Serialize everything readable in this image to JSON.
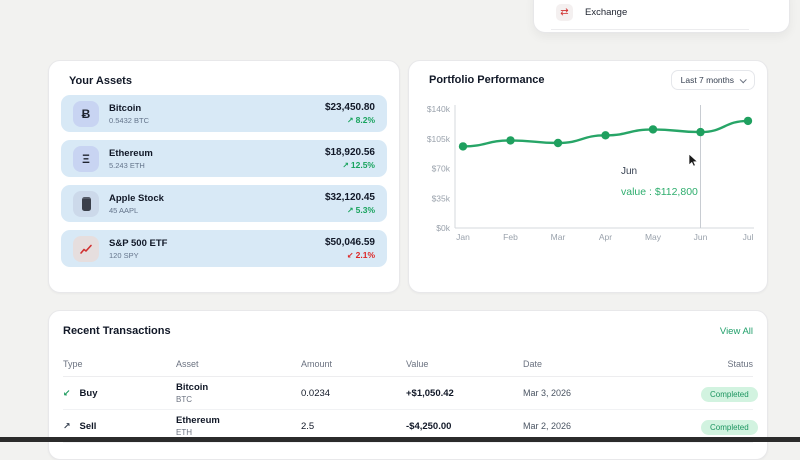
{
  "colors": {
    "accent_green": "#1fa05f",
    "positive_text": "#18a35d",
    "negative_text": "#dc2626",
    "badge_bg": "#d2f3e0",
    "badge_text": "#1d9560",
    "asset_row_bg": "#d8e9f6"
  },
  "exchange_menu": {
    "label": "Exchange",
    "icon": "swap-arrows-icon",
    "icon_glyph": "⇄"
  },
  "assets": {
    "title": "Your Assets",
    "items": [
      {
        "name": "Bitcoin",
        "holding": "0.5432 BTC",
        "value": "$23,450.80",
        "arrow": "↗",
        "change": "8.2%",
        "direction": "up",
        "icon": "bitcoin-icon",
        "icon_glyph": "Ƀ"
      },
      {
        "name": "Ethereum",
        "holding": "5.243 ETH",
        "value": "$18,920.56",
        "arrow": "↗",
        "change": "12.5%",
        "direction": "up",
        "icon": "ethereum-icon",
        "icon_glyph": "Ξ"
      },
      {
        "name": "Apple Stock",
        "holding": "45 AAPL",
        "value": "$32,120.45",
        "arrow": "↗",
        "change": "5.3%",
        "direction": "up",
        "icon": "phone-icon"
      },
      {
        "name": "S&P 500 ETF",
        "holding": "120 SPY",
        "value": "$50,046.59",
        "arrow": "↙",
        "change": "2.1%",
        "direction": "down",
        "icon": "chart-icon"
      }
    ]
  },
  "portfolio": {
    "title": "Portfolio Performance",
    "range_label": "Last 7 months",
    "tooltip": {
      "month": "Jun",
      "value_text": "value : $112,800"
    }
  },
  "chart_data": {
    "type": "line",
    "title": "Portfolio Performance",
    "x": [
      "Jan",
      "Feb",
      "Mar",
      "Apr",
      "May",
      "Jun",
      "Jul"
    ],
    "values": [
      96000,
      103000,
      100000,
      109000,
      116000,
      112800,
      126000
    ],
    "ylim": [
      0,
      140000
    ],
    "ylabel_ticks": [
      "$0k",
      "$35k",
      "$70k",
      "$105k",
      "$140k"
    ],
    "line_color": "#27a567",
    "dot_color": "#1fa05f",
    "grid": false,
    "highlight_x": "Jun",
    "tooltip": {
      "month": "Jun",
      "value": 112800
    }
  },
  "transactions": {
    "title": "Recent Transactions",
    "view_all": "View All",
    "columns": [
      "Type",
      "Asset",
      "Amount",
      "Value",
      "Date",
      "Status"
    ],
    "rows": [
      {
        "type": "Buy",
        "arrow": "↙",
        "asset": "Bitcoin",
        "symbol": "BTC",
        "amount": "0.0234",
        "value": "+$1,050.42",
        "date": "Mar 3, 2026",
        "status": "Completed"
      },
      {
        "type": "Sell",
        "arrow": "↗",
        "asset": "Ethereum",
        "symbol": "ETH",
        "amount": "2.5",
        "value": "-$4,250.00",
        "date": "Mar 2, 2026",
        "status": "Completed"
      }
    ]
  }
}
